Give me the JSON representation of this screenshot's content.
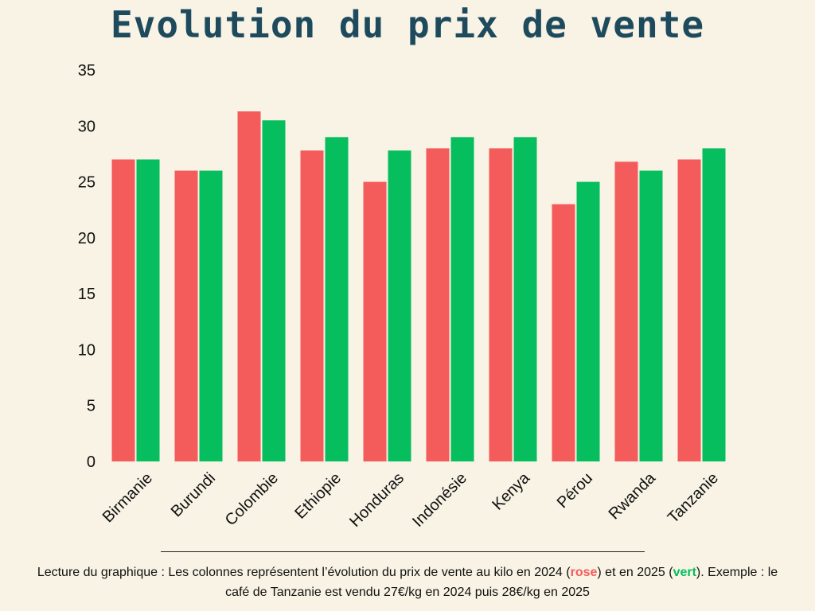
{
  "colors": {
    "background": "#f8f3e4",
    "title": "#1e4a5e",
    "series_2024": "#f45b5b",
    "series_2025": "#07be5f"
  },
  "caption": {
    "part1": "Lecture du graphique : Les colonnes représentent l’évolution du prix de vente au kilo en 2024 (",
    "rose_word": "rose",
    "part2": ") et en 2025 (",
    "vert_word": "vert",
    "part3": "). Exemple : le café de Tanzanie est vendu 27€/kg en 2024 puis 28€/kg en 2025"
  },
  "chart_data": {
    "type": "bar",
    "title": "Evolution du prix de vente",
    "xlabel": "",
    "ylabel": "",
    "categories": [
      "Birmanie",
      "Burundi",
      "Colombie",
      "Ethiopie",
      "Honduras",
      "Indonésie",
      "Kenya",
      "Pérou",
      "Rwanda",
      "Tanzanie"
    ],
    "series": [
      {
        "values": [
          27,
          26,
          31.3,
          27.8,
          25,
          28,
          28,
          23,
          26.8,
          27
        ]
      },
      {
        "values": [
          27,
          26,
          30.5,
          29,
          27.8,
          29,
          29,
          25,
          26,
          28
        ]
      }
    ],
    "ylim": [
      0,
      35
    ],
    "yticks": [
      0,
      5,
      10,
      15,
      20,
      25,
      30,
      35
    ],
    "grid": false,
    "legend": "none"
  }
}
